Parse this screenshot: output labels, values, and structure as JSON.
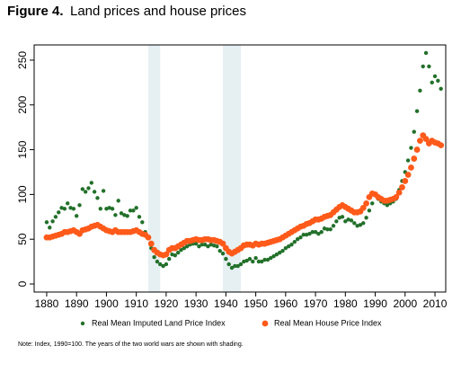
{
  "chart_data": {
    "type": "scatter",
    "title_label": "Figure 4.",
    "title": "Land prices and house prices",
    "note": "Note: Index, 1990=100. The years of the two world wars are shown with shading.",
    "x": [
      1880,
      1881,
      1882,
      1883,
      1884,
      1885,
      1886,
      1887,
      1888,
      1889,
      1890,
      1891,
      1892,
      1893,
      1894,
      1895,
      1896,
      1897,
      1898,
      1899,
      1900,
      1901,
      1902,
      1903,
      1904,
      1905,
      1906,
      1907,
      1908,
      1909,
      1910,
      1911,
      1912,
      1913,
      1914,
      1915,
      1916,
      1917,
      1918,
      1919,
      1920,
      1921,
      1922,
      1923,
      1924,
      1925,
      1926,
      1927,
      1928,
      1929,
      1930,
      1931,
      1932,
      1933,
      1934,
      1935,
      1936,
      1937,
      1938,
      1939,
      1940,
      1941,
      1942,
      1943,
      1944,
      1945,
      1946,
      1947,
      1948,
      1949,
      1950,
      1951,
      1952,
      1953,
      1954,
      1955,
      1956,
      1957,
      1958,
      1959,
      1960,
      1961,
      1962,
      1963,
      1964,
      1965,
      1966,
      1967,
      1968,
      1969,
      1970,
      1971,
      1972,
      1973,
      1974,
      1975,
      1976,
      1977,
      1978,
      1979,
      1980,
      1981,
      1982,
      1983,
      1984,
      1985,
      1986,
      1987,
      1988,
      1989,
      1990,
      1991,
      1992,
      1993,
      1994,
      1995,
      1996,
      1997,
      1998,
      1999,
      2000,
      2001,
      2002,
      2003,
      2004,
      2005,
      2006,
      2007,
      2008,
      2009,
      2010,
      2011,
      2012
    ],
    "series": [
      {
        "name": "Real Mean Imputed Land Price Index",
        "color": "#22702a",
        "values": [
          69,
          63,
          70,
          75,
          80,
          85,
          84,
          90,
          85,
          84,
          76,
          88,
          106,
          103,
          107,
          113,
          103,
          96,
          84,
          104,
          84,
          85,
          84,
          77,
          93,
          79,
          77,
          76,
          82,
          82,
          85,
          75,
          69,
          58,
          52,
          40,
          30,
          25,
          22,
          20,
          22,
          28,
          33,
          32,
          35,
          38,
          40,
          42,
          44,
          45,
          45,
          42,
          44,
          44,
          42,
          44,
          43,
          42,
          37,
          34,
          28,
          22,
          18,
          20,
          20,
          22,
          25,
          26,
          28,
          25,
          29,
          25,
          25,
          27,
          27,
          29,
          31,
          33,
          35,
          37,
          40,
          42,
          44,
          47,
          50,
          52,
          55,
          55,
          56,
          58,
          58,
          56,
          58,
          62,
          61,
          61,
          65,
          70,
          74,
          75,
          70,
          72,
          71,
          68,
          65,
          66,
          68,
          74,
          82,
          90,
          100,
          95,
          92,
          90,
          88,
          90,
          92,
          95,
          105,
          115,
          125,
          138,
          152,
          170,
          193,
          216,
          243,
          258,
          243,
          225,
          232,
          227,
          218
        ]
      },
      {
        "name": "Real Mean House Price Index",
        "color": "#ff5a1a",
        "values": [
          52,
          52,
          53,
          54,
          55,
          56,
          58,
          58,
          59,
          60,
          58,
          56,
          60,
          61,
          62,
          64,
          65,
          66,
          64,
          62,
          60,
          59,
          58,
          60,
          58,
          58,
          58,
          58,
          58,
          59,
          60,
          58,
          56,
          55,
          52,
          45,
          38,
          35,
          33,
          32,
          33,
          38,
          40,
          40,
          42,
          44,
          46,
          48,
          48,
          49,
          50,
          49,
          49,
          50,
          50,
          49,
          49,
          48,
          47,
          45,
          40,
          36,
          34,
          36,
          38,
          40,
          43,
          44,
          44,
          43,
          45,
          44,
          45,
          45,
          46,
          47,
          48,
          49,
          50,
          52,
          54,
          56,
          58,
          60,
          62,
          64,
          65,
          67,
          68,
          70,
          72,
          72,
          73,
          75,
          76,
          77,
          80,
          83,
          86,
          88,
          86,
          84,
          82,
          80,
          80,
          81,
          85,
          90,
          97,
          101,
          100,
          97,
          95,
          93,
          93,
          94,
          95,
          97,
          102,
          108,
          115,
          122,
          130,
          140,
          150,
          160,
          166,
          162,
          157,
          160,
          158,
          157,
          155
        ]
      }
    ],
    "shading": [
      [
        1914,
        1918
      ],
      [
        1939,
        1945
      ]
    ],
    "shading_color": "#e6f0f2",
    "xlim": [
      1875.8,
      2013.6
    ],
    "ylim": [
      -9,
      267
    ],
    "xticks": [
      1880,
      1890,
      1900,
      1910,
      1920,
      1930,
      1940,
      1950,
      1960,
      1970,
      1980,
      1990,
      2000,
      2010
    ],
    "yticks": [
      0,
      50,
      100,
      150,
      200,
      250
    ]
  }
}
